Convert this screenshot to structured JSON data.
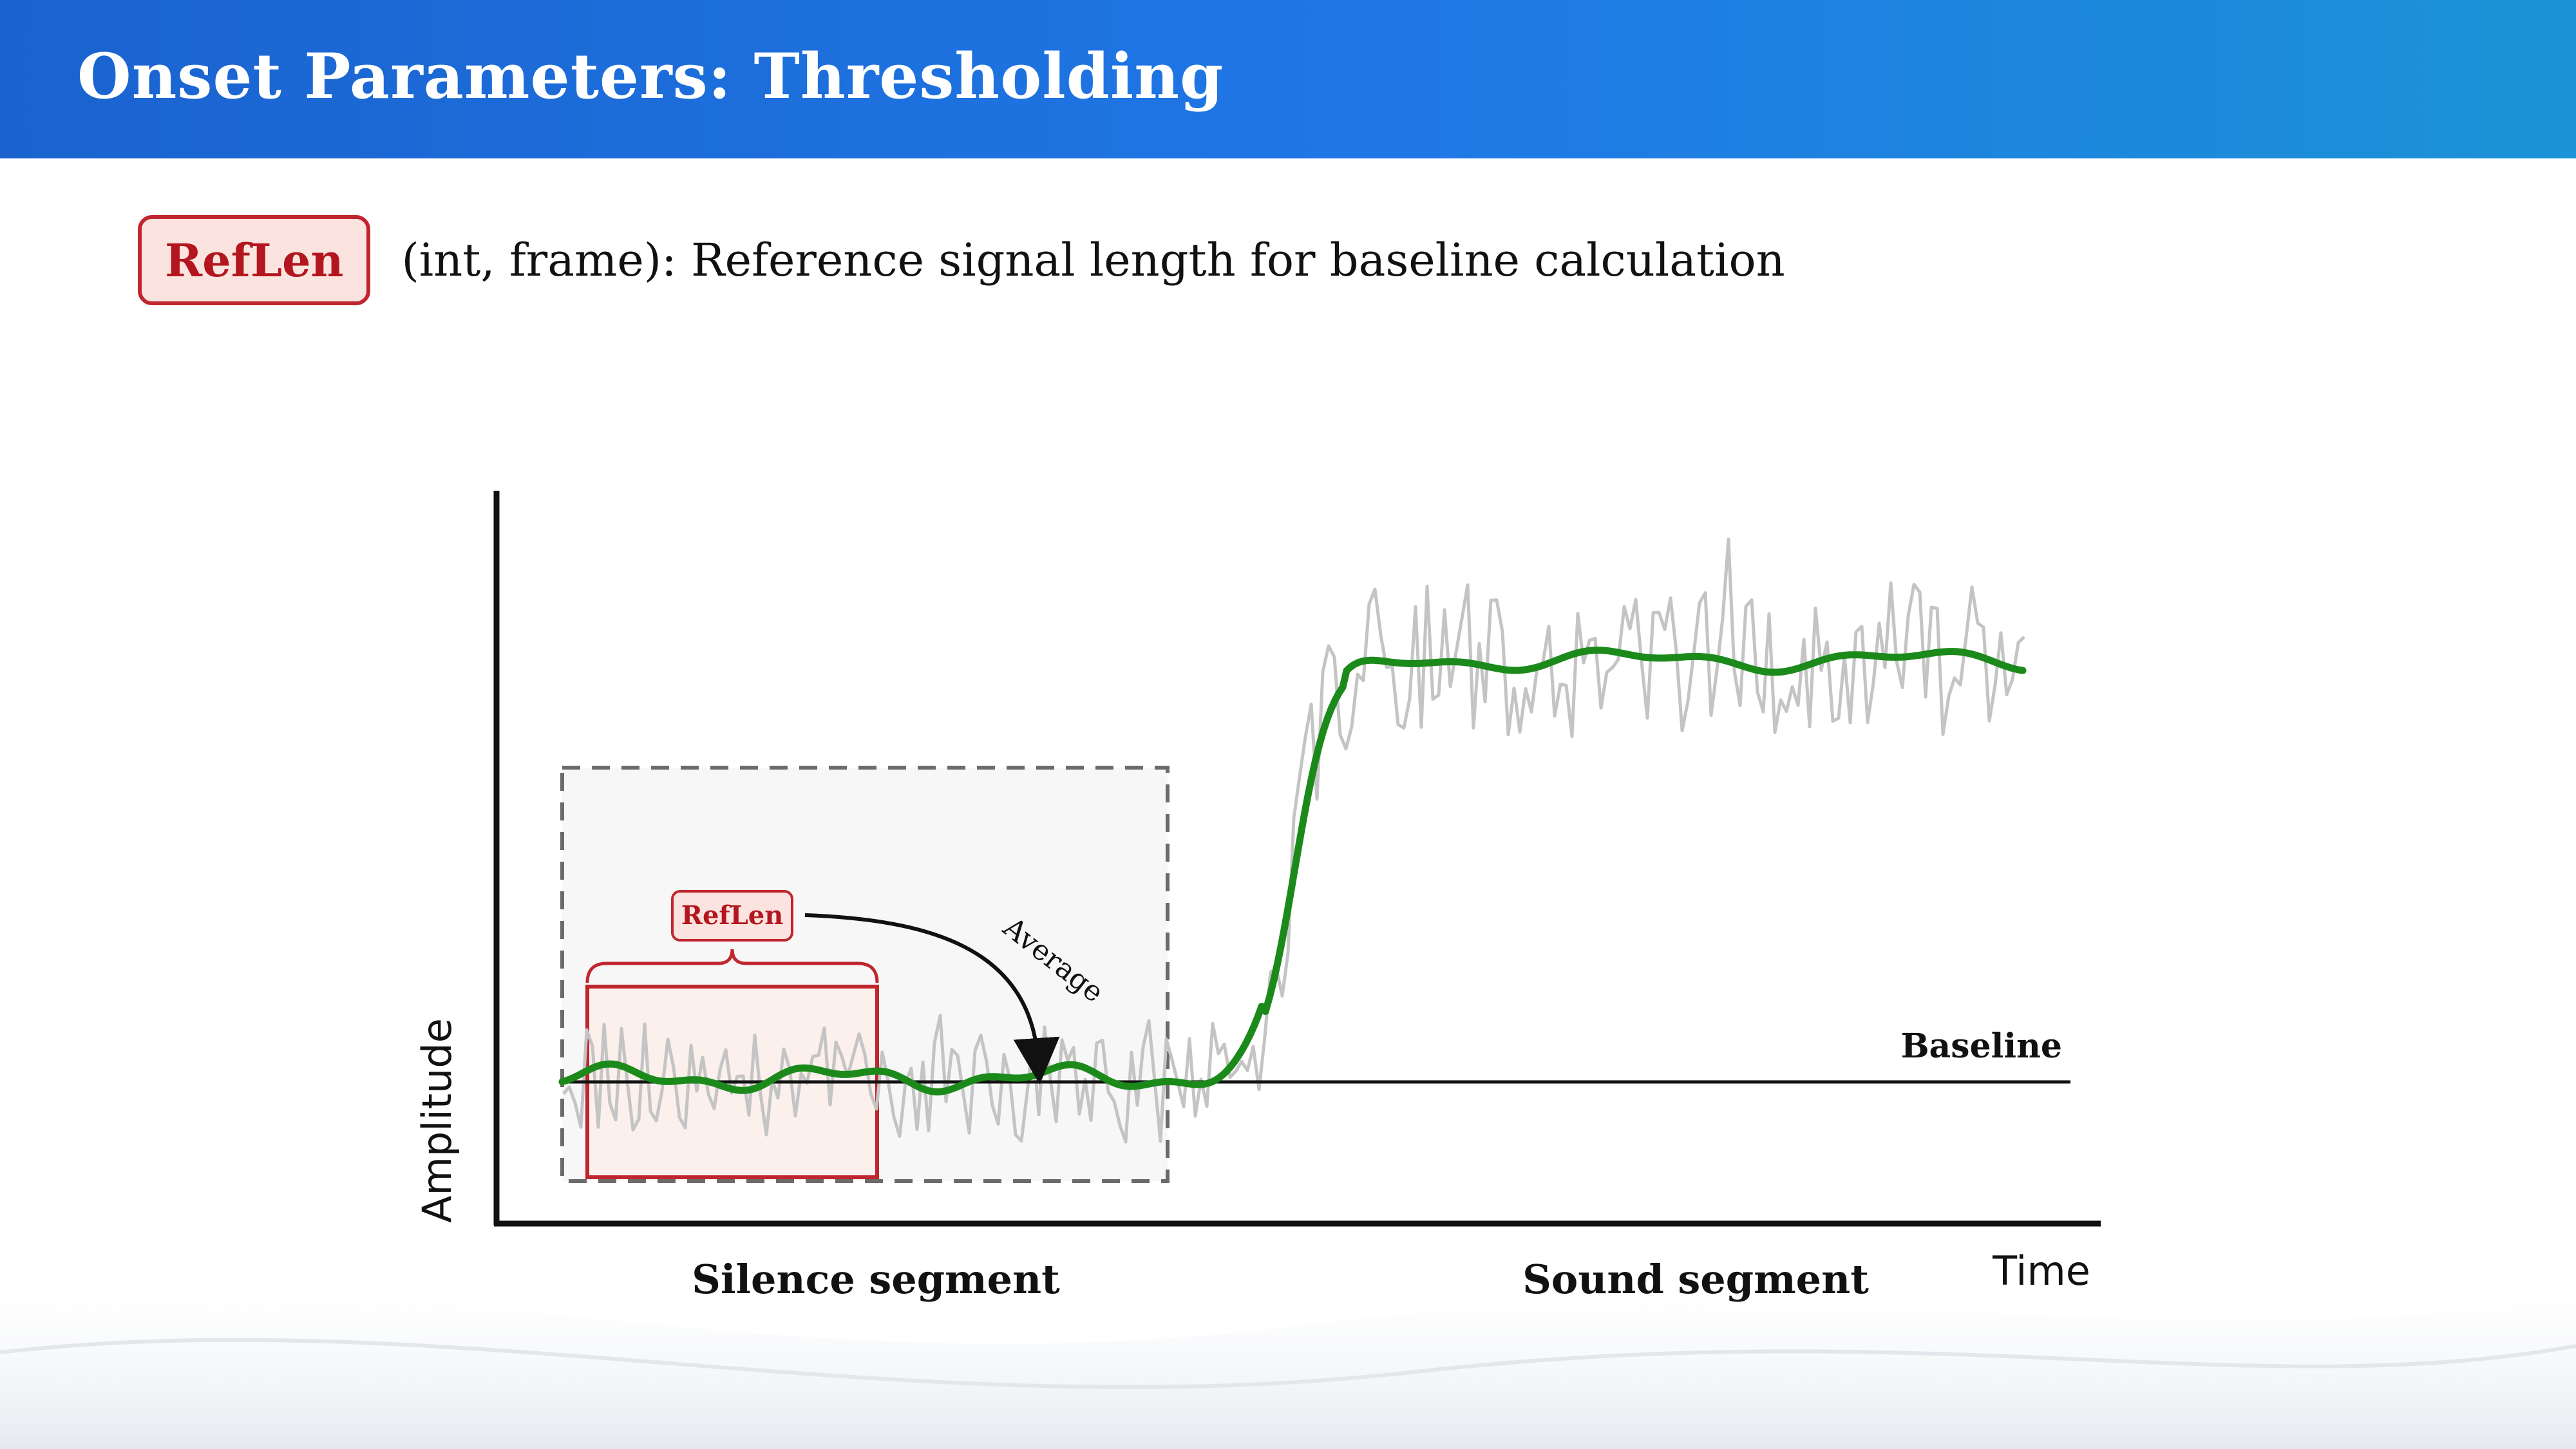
{
  "header": {
    "title": "Onset Parameters: Thresholding"
  },
  "parameter": {
    "name": "RefLen",
    "description": "(int, frame): Reference signal length for baseline calculation"
  },
  "diagram": {
    "y_axis_label": "Amplitude",
    "x_axis_label": "Time",
    "window_label": "RefLen",
    "arrow_label": "Average",
    "baseline_label": "Baseline",
    "silence_label": "Silence segment",
    "sound_label": "Sound segment"
  },
  "colors": {
    "header_start": "#1a63cf",
    "header_end": "#1b93d6",
    "accent_red": "#c0262d",
    "badge_fill": "#fbe3df",
    "smooth_signal": "#1b8a1b",
    "raw_signal": "#c4c4c4"
  }
}
